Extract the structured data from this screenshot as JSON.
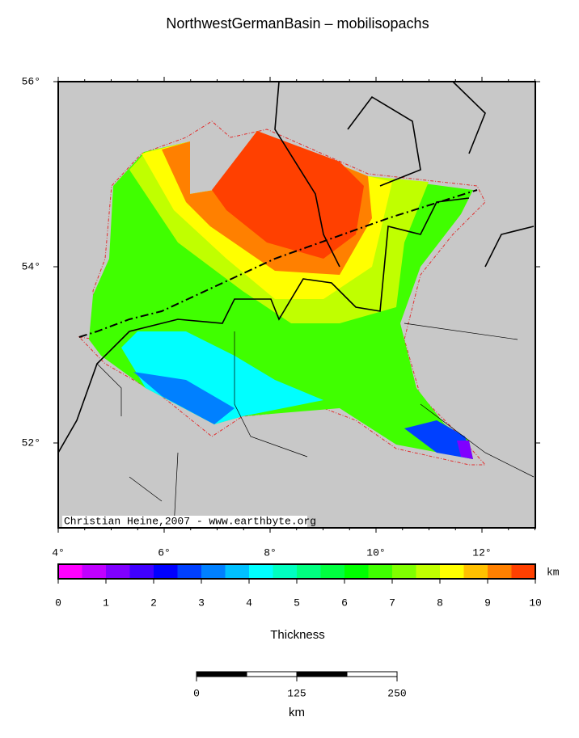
{
  "title": "NorthwestGermanBasin – mobilisopachs",
  "map": {
    "lat_labels": [
      "56°",
      "54°",
      "52°"
    ],
    "lon_labels": [
      "4°",
      "6°",
      "8°",
      "10°",
      "12°"
    ],
    "credit": "Christian Heine,2007 - www.earthbyte.org"
  },
  "colorbar": {
    "ticks": [
      0,
      1,
      2,
      3,
      4,
      5,
      6,
      7,
      8,
      9,
      10
    ],
    "unit": "km",
    "label": "Thickness",
    "colors": [
      "#ff00ff",
      "#c000ff",
      "#8000ff",
      "#4000ff",
      "#0000ff",
      "#0040ff",
      "#0080ff",
      "#00c0ff",
      "#00ffff",
      "#00ffc0",
      "#00ff80",
      "#00ff40",
      "#00ff00",
      "#40ff00",
      "#80ff00",
      "#c0ff00",
      "#ffff00",
      "#ffc000",
      "#ff8000",
      "#ff4000"
    ]
  },
  "scale_bar": {
    "ticks": [
      0,
      125,
      250
    ],
    "unit": "km"
  }
}
